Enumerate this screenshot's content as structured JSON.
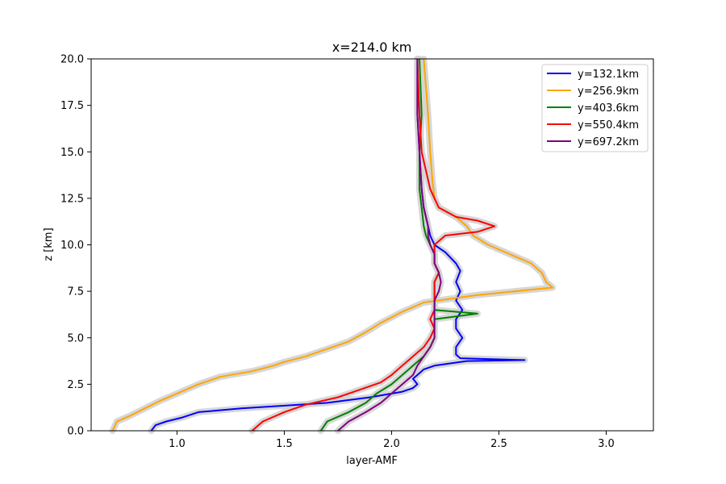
{
  "chart_data": {
    "type": "line",
    "title": "x=214.0 km",
    "xlabel": "layer-AMF",
    "ylabel": "z [km]",
    "xlim": [
      0.6,
      3.22
    ],
    "ylim": [
      0,
      20
    ],
    "xticks": [
      1.0,
      1.5,
      2.0,
      2.5,
      3.0
    ],
    "xtick_labels": [
      "1.0",
      "1.5",
      "2.0",
      "2.5",
      "3.0"
    ],
    "yticks": [
      0,
      2.5,
      5,
      7.5,
      10,
      12.5,
      15,
      17.5,
      20
    ],
    "ytick_labels": [
      "0.0",
      "2.5",
      "5.0",
      "7.5",
      "10.0",
      "12.5",
      "15.0",
      "17.5",
      "20.0"
    ],
    "grid": false,
    "legend_position": "top-right",
    "uncertainty_band_color": "#d3d3d3",
    "series": [
      {
        "name": "y=132.1km",
        "color": "#0000ff",
        "points": [
          [
            0.88,
            0
          ],
          [
            0.9,
            0.3
          ],
          [
            0.95,
            0.5
          ],
          [
            1.02,
            0.7
          ],
          [
            1.1,
            1.0
          ],
          [
            1.3,
            1.2
          ],
          [
            1.5,
            1.35
          ],
          [
            1.7,
            1.5
          ],
          [
            1.9,
            1.8
          ],
          [
            2.05,
            2.1
          ],
          [
            2.1,
            2.3
          ],
          [
            2.12,
            2.5
          ],
          [
            2.1,
            2.8
          ],
          [
            2.12,
            3.0
          ],
          [
            2.15,
            3.3
          ],
          [
            2.2,
            3.5
          ],
          [
            2.35,
            3.75
          ],
          [
            2.62,
            3.8
          ],
          [
            2.32,
            3.9
          ],
          [
            2.3,
            4.1
          ],
          [
            2.3,
            4.5
          ],
          [
            2.33,
            5.0
          ],
          [
            2.3,
            5.5
          ],
          [
            2.3,
            6.0
          ],
          [
            2.33,
            6.5
          ],
          [
            2.3,
            7.0
          ],
          [
            2.32,
            7.5
          ],
          [
            2.3,
            8.0
          ],
          [
            2.32,
            8.6
          ],
          [
            2.3,
            9.0
          ],
          [
            2.25,
            9.6
          ],
          [
            2.2,
            10.0
          ],
          [
            2.18,
            10.5
          ],
          [
            2.17,
            11.0
          ],
          [
            2.16,
            11.5
          ],
          [
            2.15,
            12.0
          ],
          [
            2.14,
            13.0
          ],
          [
            2.13,
            15.0
          ],
          [
            2.12,
            17.0
          ],
          [
            2.12,
            20.0
          ]
        ]
      },
      {
        "name": "y=256.9km",
        "color": "#ffa500",
        "points": [
          [
            0.7,
            0
          ],
          [
            0.72,
            0.5
          ],
          [
            0.78,
            0.8
          ],
          [
            0.85,
            1.2
          ],
          [
            0.92,
            1.6
          ],
          [
            1.0,
            2.0
          ],
          [
            1.1,
            2.5
          ],
          [
            1.2,
            2.9
          ],
          [
            1.35,
            3.2
          ],
          [
            1.45,
            3.5
          ],
          [
            1.5,
            3.7
          ],
          [
            1.6,
            4.0
          ],
          [
            1.7,
            4.4
          ],
          [
            1.8,
            4.8
          ],
          [
            1.88,
            5.3
          ],
          [
            1.95,
            5.8
          ],
          [
            2.05,
            6.4
          ],
          [
            2.15,
            6.9
          ],
          [
            2.4,
            7.3
          ],
          [
            2.75,
            7.7
          ],
          [
            2.72,
            8.0
          ],
          [
            2.7,
            8.5
          ],
          [
            2.65,
            9.0
          ],
          [
            2.55,
            9.5
          ],
          [
            2.45,
            10.0
          ],
          [
            2.38,
            10.5
          ],
          [
            2.35,
            11.0
          ],
          [
            2.3,
            11.5
          ],
          [
            2.22,
            12.0
          ],
          [
            2.2,
            12.5
          ],
          [
            2.19,
            13.5
          ],
          [
            2.18,
            15.0
          ],
          [
            2.17,
            17.0
          ],
          [
            2.15,
            20.0
          ]
        ]
      },
      {
        "name": "y=403.6km",
        "color": "#008000",
        "points": [
          [
            1.67,
            0
          ],
          [
            1.7,
            0.5
          ],
          [
            1.8,
            1.0
          ],
          [
            1.88,
            1.5
          ],
          [
            1.93,
            2.0
          ],
          [
            2.0,
            2.5
          ],
          [
            2.05,
            3.0
          ],
          [
            2.1,
            3.5
          ],
          [
            2.15,
            4.0
          ],
          [
            2.18,
            4.5
          ],
          [
            2.2,
            5.0
          ],
          [
            2.2,
            5.5
          ],
          [
            2.2,
            6.0
          ],
          [
            2.4,
            6.3
          ],
          [
            2.2,
            6.5
          ],
          [
            2.2,
            7.0
          ],
          [
            2.2,
            7.5
          ],
          [
            2.2,
            8.0
          ],
          [
            2.22,
            8.5
          ],
          [
            2.2,
            9.0
          ],
          [
            2.2,
            9.5
          ],
          [
            2.18,
            10.0
          ],
          [
            2.16,
            10.5
          ],
          [
            2.15,
            11.0
          ],
          [
            2.14,
            12.0
          ],
          [
            2.13,
            13.0
          ],
          [
            2.13,
            14.0
          ],
          [
            2.13,
            15.0
          ],
          [
            2.14,
            17.0
          ],
          [
            2.13,
            20.0
          ]
        ]
      },
      {
        "name": "y=550.4km",
        "color": "#ff0000",
        "points": [
          [
            1.35,
            0
          ],
          [
            1.4,
            0.5
          ],
          [
            1.5,
            1.0
          ],
          [
            1.6,
            1.4
          ],
          [
            1.75,
            1.8
          ],
          [
            1.85,
            2.2
          ],
          [
            1.95,
            2.6
          ],
          [
            2.0,
            3.0
          ],
          [
            2.05,
            3.5
          ],
          [
            2.1,
            4.0
          ],
          [
            2.15,
            4.5
          ],
          [
            2.18,
            5.0
          ],
          [
            2.2,
            5.5
          ],
          [
            2.18,
            6.0
          ],
          [
            2.2,
            6.5
          ],
          [
            2.2,
            7.0
          ],
          [
            2.2,
            7.5
          ],
          [
            2.2,
            8.0
          ],
          [
            2.22,
            8.5
          ],
          [
            2.2,
            9.0
          ],
          [
            2.2,
            9.5
          ],
          [
            2.2,
            10.0
          ],
          [
            2.25,
            10.5
          ],
          [
            2.4,
            10.7
          ],
          [
            2.48,
            11.0
          ],
          [
            2.4,
            11.3
          ],
          [
            2.3,
            11.5
          ],
          [
            2.22,
            12.0
          ],
          [
            2.2,
            12.5
          ],
          [
            2.18,
            13.0
          ],
          [
            2.16,
            14.0
          ],
          [
            2.14,
            15.0
          ],
          [
            2.13,
            17.0
          ],
          [
            2.12,
            20.0
          ]
        ]
      },
      {
        "name": "y=697.2km",
        "color": "#800080",
        "points": [
          [
            1.75,
            0
          ],
          [
            1.8,
            0.5
          ],
          [
            1.88,
            1.0
          ],
          [
            1.95,
            1.5
          ],
          [
            2.0,
            2.0
          ],
          [
            2.05,
            2.5
          ],
          [
            2.1,
            3.0
          ],
          [
            2.12,
            3.5
          ],
          [
            2.15,
            4.0
          ],
          [
            2.18,
            4.5
          ],
          [
            2.2,
            5.0
          ],
          [
            2.2,
            5.5
          ],
          [
            2.2,
            6.0
          ],
          [
            2.2,
            6.5
          ],
          [
            2.2,
            7.0
          ],
          [
            2.22,
            7.5
          ],
          [
            2.23,
            8.0
          ],
          [
            2.22,
            8.5
          ],
          [
            2.2,
            9.0
          ],
          [
            2.2,
            9.5
          ],
          [
            2.18,
            10.0
          ],
          [
            2.17,
            10.5
          ],
          [
            2.17,
            11.0
          ],
          [
            2.16,
            11.5
          ],
          [
            2.15,
            12.0
          ],
          [
            2.14,
            13.0
          ],
          [
            2.13,
            15.0
          ],
          [
            2.12,
            17.0
          ],
          [
            2.12,
            20.0
          ]
        ]
      }
    ]
  }
}
